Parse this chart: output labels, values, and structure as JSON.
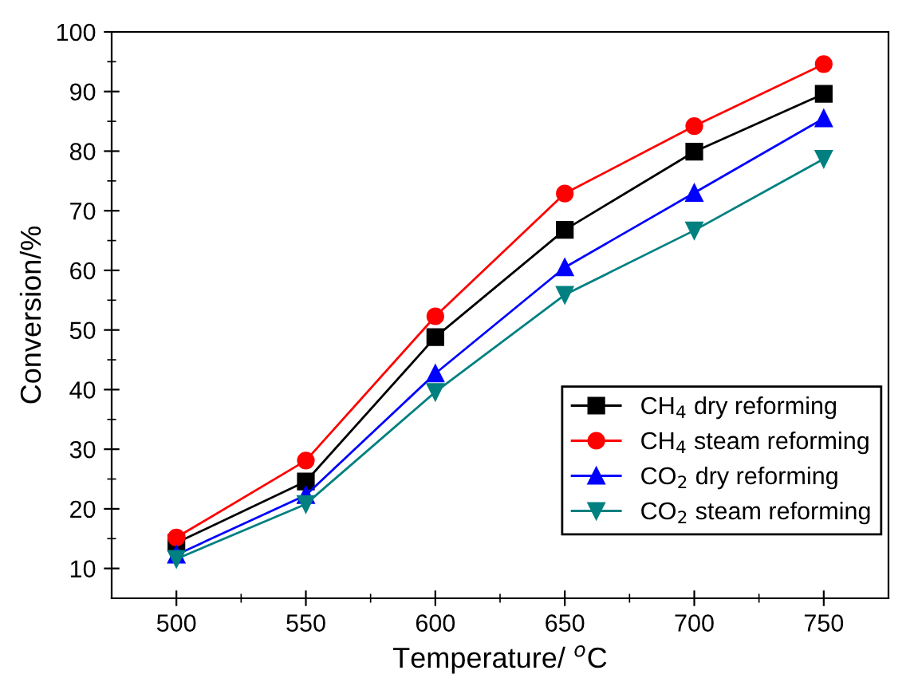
{
  "chart_data": {
    "type": "line",
    "xlabel": "Temperature/ $^{o}$C",
    "ylabel": "Conversion/%",
    "x": [
      500,
      550,
      600,
      650,
      700,
      750
    ],
    "series": [
      {
        "name": "CH$_{4}$ dry reforming",
        "color": "#000000",
        "marker": "square",
        "values": [
          14.3,
          24.6,
          48.8,
          66.8,
          79.9,
          89.6
        ]
      },
      {
        "name": "CH$_{4}$ steam reforming",
        "color": "#ff0000",
        "marker": "circle",
        "values": [
          15.2,
          28.1,
          52.3,
          72.9,
          84.2,
          94.6
        ]
      },
      {
        "name": "CO$_{2}$ dry reforming",
        "color": "#0000ff",
        "marker": "triangle",
        "values": [
          12.3,
          22.3,
          42.7,
          60.5,
          73.0,
          85.5
        ]
      },
      {
        "name": "CO$_{2}$ steam reforming",
        "color": "#008080",
        "marker": "triangle_down",
        "values": [
          11.6,
          20.8,
          39.6,
          55.9,
          66.7,
          78.7
        ]
      }
    ],
    "xlim": [
      475,
      775
    ],
    "xticks": [
      500,
      550,
      600,
      650,
      700,
      750
    ],
    "ylim": [
      5,
      100
    ],
    "yticks": [
      10,
      20,
      30,
      40,
      50,
      60,
      70,
      80,
      90,
      100
    ],
    "grid": false,
    "legend": "bottom right"
  }
}
